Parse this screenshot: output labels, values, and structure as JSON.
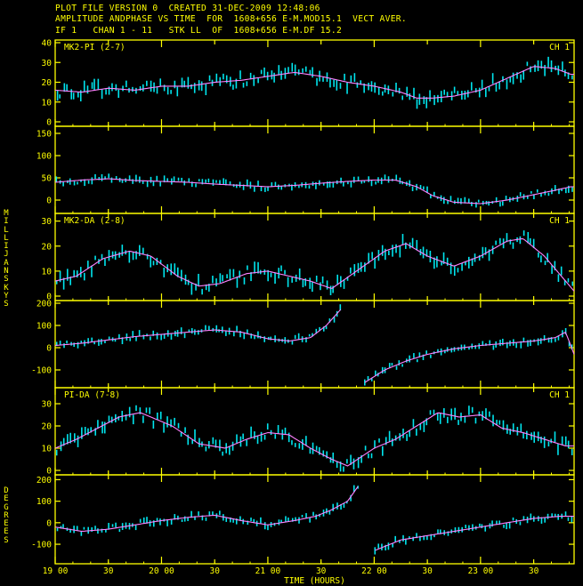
{
  "header": {
    "line1": "PLOT FILE VERSION 0  CREATED 31-DEC-2009 12:48:06",
    "line2": "AMPLITUDE ANDPHASE VS TIME  FOR  1608+656 E-M.MOD15.1  VECT AVER.",
    "line3": "IF 1   CHAN 1 - 11   STK LL  OF  1608+656 E-M.DF 15.2"
  },
  "axes": {
    "xlabel": "TIME (HOURS)",
    "xticks": [
      {
        "t": 19.0,
        "label": "19 00"
      },
      {
        "t": 19.5,
        "label": "30"
      },
      {
        "t": 20.0,
        "label": "20 00"
      },
      {
        "t": 20.5,
        "label": "30"
      },
      {
        "t": 21.0,
        "label": "21 00"
      },
      {
        "t": 21.5,
        "label": "30"
      },
      {
        "t": 22.0,
        "label": "22 00"
      },
      {
        "t": 22.5,
        "label": "30"
      },
      {
        "t": 23.0,
        "label": "23 00"
      },
      {
        "t": 23.5,
        "label": "30"
      }
    ],
    "ylabel_amp": "MILLIJANSKYS",
    "ylabel_phase": "DEGREES",
    "tmin": 19.0,
    "tmax": 23.88
  },
  "colors": {
    "frame": "#ffff00",
    "data": "#00e5ee",
    "model": "#ff80ff",
    "text": "#ffff00",
    "background": "#000000"
  },
  "chart_data": [
    {
      "type": "line",
      "panel": "amplitude",
      "label": "MK2-PI (2-7)",
      "channel": "CH 1",
      "ylim": [
        0,
        40
      ],
      "yticks": [
        0,
        10,
        20,
        30,
        40
      ],
      "model_x": [
        19.0,
        19.25,
        19.5,
        19.75,
        20.0,
        20.25,
        20.5,
        20.75,
        21.0,
        21.25,
        21.5,
        21.75,
        22.0,
        22.25,
        22.4,
        22.55,
        22.75,
        23.0,
        23.25,
        23.5,
        23.7,
        23.85
      ],
      "model_y": [
        16,
        15,
        17,
        16,
        18,
        18,
        20,
        21,
        23,
        25,
        23,
        20,
        18,
        15,
        12,
        12,
        13,
        16,
        22,
        28,
        27,
        24
      ]
    },
    {
      "type": "line",
      "panel": "phase",
      "ylim": [
        -20,
        160
      ],
      "yticks": [
        0,
        50,
        100,
        150
      ],
      "model_x": [
        19.0,
        19.25,
        19.5,
        19.75,
        20.0,
        20.25,
        20.5,
        20.75,
        21.0,
        21.25,
        21.5,
        21.75,
        22.0,
        22.2,
        22.4,
        22.55,
        22.75,
        23.0,
        23.25,
        23.5,
        23.7,
        23.85
      ],
      "model_y": [
        40,
        45,
        48,
        44,
        42,
        40,
        36,
        33,
        30,
        33,
        38,
        42,
        45,
        45,
        30,
        10,
        -5,
        -8,
        0,
        12,
        22,
        30
      ]
    },
    {
      "type": "line",
      "panel": "amplitude",
      "label": "MK2-DA (2-8)",
      "channel": "CH 1",
      "ylim": [
        0,
        32
      ],
      "yticks": [
        0,
        10,
        20,
        30
      ],
      "model_x": [
        19.0,
        19.2,
        19.45,
        19.7,
        19.9,
        20.15,
        20.35,
        20.55,
        20.8,
        21.0,
        21.2,
        21.4,
        21.6,
        21.9,
        22.1,
        22.3,
        22.5,
        22.75,
        23.0,
        23.25,
        23.4,
        23.6,
        23.8,
        23.88
      ],
      "model_y": [
        6,
        8,
        15,
        18,
        16,
        8,
        4,
        5,
        9,
        10,
        8,
        6,
        3,
        12,
        18,
        21,
        16,
        12,
        16,
        22,
        23,
        16,
        6,
        2
      ]
    },
    {
      "type": "line",
      "panel": "phase",
      "ylim": [
        -160,
        200
      ],
      "yticks": [
        -100,
        0,
        100,
        200
      ],
      "model_x": [
        19.0,
        19.25,
        19.5,
        19.75,
        20.0,
        20.25,
        20.5,
        20.75,
        21.0,
        21.2,
        21.4,
        21.55,
        21.7,
        21.9,
        22.1,
        22.3,
        22.5,
        22.75,
        23.0,
        23.25,
        23.5,
        23.7,
        23.8,
        23.88
      ],
      "model_y": [
        10,
        20,
        35,
        50,
        60,
        70,
        80,
        70,
        40,
        30,
        45,
        100,
        180,
        -160,
        -100,
        -60,
        -30,
        -5,
        10,
        20,
        30,
        45,
        70,
        -30
      ]
    },
    {
      "type": "line",
      "panel": "amplitude",
      "label": "PI-DA (7-8)",
      "channel": "CH 1",
      "ylim": [
        0,
        36
      ],
      "yticks": [
        0,
        10,
        20,
        30
      ],
      "model_x": [
        19.0,
        19.2,
        19.4,
        19.6,
        19.8,
        20.1,
        20.35,
        20.6,
        20.8,
        21.0,
        21.2,
        21.4,
        21.6,
        21.75,
        22.0,
        22.2,
        22.4,
        22.6,
        22.8,
        23.0,
        23.2,
        23.4,
        23.6,
        23.8,
        23.88
      ],
      "model_y": [
        10,
        14,
        19,
        24,
        26,
        20,
        12,
        10,
        14,
        17,
        16,
        10,
        5,
        2,
        10,
        14,
        20,
        26,
        24,
        25,
        19,
        17,
        14,
        11,
        11
      ]
    },
    {
      "type": "line",
      "panel": "phase",
      "ylim": [
        -170,
        210
      ],
      "yticks": [
        -100,
        0,
        100,
        200
      ],
      "model_x": [
        19.0,
        19.25,
        19.5,
        19.75,
        20.0,
        20.25,
        20.5,
        20.75,
        21.0,
        21.25,
        21.45,
        21.6,
        21.75,
        21.85,
        22.0,
        22.25,
        22.5,
        22.75,
        23.0,
        23.25,
        23.5,
        23.75,
        23.88
      ],
      "model_y": [
        -20,
        -40,
        -30,
        -10,
        10,
        25,
        35,
        10,
        -10,
        10,
        30,
        60,
        100,
        170,
        -130,
        -80,
        -60,
        -40,
        -20,
        0,
        20,
        30,
        30
      ]
    }
  ]
}
